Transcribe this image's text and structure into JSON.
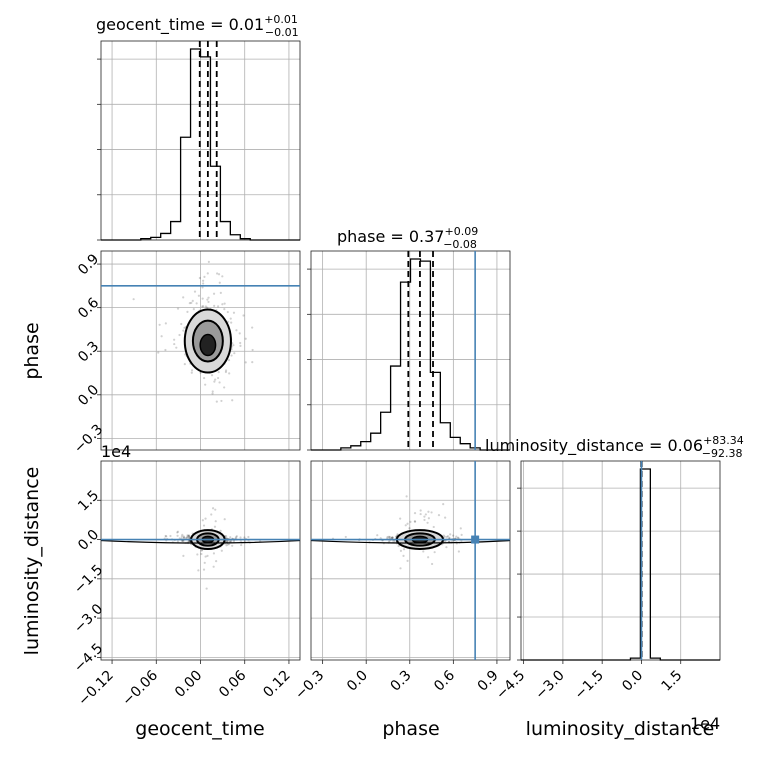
{
  "chart_data": {
    "type": "corner",
    "truth_color": "#4682b4",
    "parameters": [
      {
        "name": "geocent_time",
        "label": "geocent_time",
        "range": [
          -0.135,
          0.135
        ],
        "ticks": [
          "−0.12",
          "−0.06",
          "0.00",
          "0.06",
          "0.12"
        ],
        "tick_values": [
          -0.12,
          -0.06,
          0.0,
          0.06,
          0.12
        ],
        "title_prefix": "geocent_time = 0.01",
        "title_plus": "+0.01",
        "title_minus": "−0.01",
        "quantiles": [
          -0.001,
          0.01,
          0.022
        ],
        "hist_edges": [
          -0.135,
          -0.1215,
          -0.108,
          -0.0945,
          -0.081,
          -0.0675,
          -0.054,
          -0.0405,
          -0.027,
          -0.0135,
          0.0,
          0.0135,
          0.027,
          0.0405,
          0.054,
          0.0675,
          0.081,
          0.0945,
          0.108,
          0.1215,
          0.135
        ],
        "hist_counts": [
          0,
          0,
          0,
          0,
          1,
          2,
          5,
          14,
          78,
          145,
          139,
          56,
          14,
          4,
          1,
          0,
          0,
          0,
          0,
          0
        ],
        "offset_text": ""
      },
      {
        "name": "phase",
        "label": "phase",
        "range": [
          -0.38,
          0.99
        ],
        "ticks": [
          "−0.3",
          "0.0",
          "0.3",
          "0.6",
          "0.9"
        ],
        "tick_values": [
          -0.3,
          0.0,
          0.3,
          0.6,
          0.9
        ],
        "title_prefix": "phase = 0.37",
        "title_plus": "+0.09",
        "title_minus": "−0.08",
        "quantiles": [
          0.29,
          0.37,
          0.46
        ],
        "truth": 0.75,
        "hist_edges": [
          -0.38,
          -0.3115,
          -0.243,
          -0.1745,
          -0.106,
          -0.0375,
          0.031,
          0.0995,
          0.168,
          0.2365,
          0.305,
          0.3735,
          0.442,
          0.5105,
          0.579,
          0.6475,
          0.716,
          0.7845,
          0.853,
          0.9215,
          0.99
        ],
        "hist_counts": [
          0,
          0,
          0,
          1,
          2,
          4,
          8,
          18,
          40,
          80,
          91,
          90,
          37,
          13,
          6,
          3,
          1,
          0,
          0,
          0
        ],
        "offset_text": ""
      },
      {
        "name": "luminosity_distance",
        "label": "luminosity_distance",
        "range": [
          -46000,
          30000
        ],
        "ticks": [
          "−4.5",
          "−3.0",
          "−1.5",
          "0.0",
          "1.5"
        ],
        "tick_values": [
          -45000,
          -30000,
          -15000,
          0,
          15000
        ],
        "title_prefix": "luminosity_distance = 0.06",
        "title_plus": "+83.34",
        "title_minus": "−92.38",
        "quantiles": [
          -92.32,
          0.06,
          83.4
        ],
        "truth": 0,
        "hist_edges": [
          -46000,
          -42200,
          -38400,
          -34600,
          -30800,
          -27000,
          -23200,
          -19400,
          -15600,
          -11800,
          -8000,
          -4200,
          -400,
          3400,
          7200,
          11000,
          14800,
          18600,
          22400,
          26200,
          30000
        ],
        "hist_counts": [
          0,
          0,
          0,
          0,
          0,
          0,
          0,
          0,
          0,
          0,
          0,
          1,
          100,
          1,
          0,
          0,
          0,
          0,
          0,
          0
        ],
        "offset_text": "1e4"
      }
    ],
    "scatter_side_ticks": {
      "phase_row": [
        "0.9",
        "0.6",
        "0.3",
        "0.0",
        "−0.3"
      ],
      "distance_row": [
        "1.5",
        "0.0",
        "−1.5",
        "−3.0",
        "−4.5"
      ]
    }
  }
}
